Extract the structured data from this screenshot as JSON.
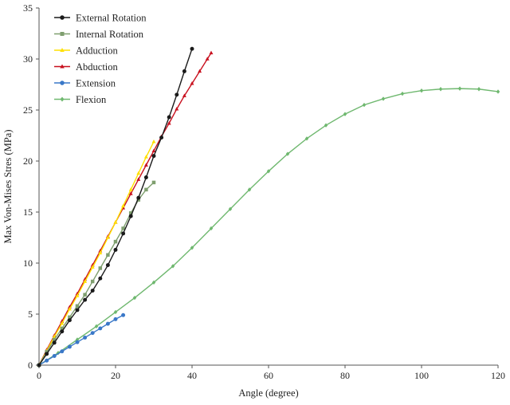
{
  "chart_data": {
    "type": "line",
    "title": "",
    "xlabel": "Angle (degree)",
    "ylabel": "Max Von-Mises Stres (MPa)",
    "xlim": [
      0,
      120
    ],
    "ylim": [
      0,
      35
    ],
    "xticks": [
      "0",
      "20",
      "40",
      "60",
      "80",
      "100",
      "120"
    ],
    "yticks": [
      "0",
      "5",
      "10",
      "15",
      "20",
      "25",
      "30",
      "35"
    ],
    "grid": false,
    "legend_position": "top-left",
    "series": [
      {
        "name": "External Rotation",
        "color": "#1a1a1a",
        "marker": "circle",
        "x": [
          0,
          2,
          4,
          6,
          8,
          10,
          12,
          14,
          16,
          18,
          20,
          22,
          24,
          26,
          28,
          30,
          32,
          34,
          36,
          38,
          40
        ],
        "y": [
          0,
          1.1,
          2.2,
          3.3,
          4.4,
          5.4,
          6.4,
          7.3,
          8.5,
          9.8,
          11.3,
          12.9,
          14.6,
          16.4,
          18.4,
          20.5,
          22.3,
          24.3,
          26.5,
          28.8,
          31
        ]
      },
      {
        "name": "Internal Rotation",
        "color": "#7f9f6f",
        "marker": "square",
        "x": [
          0,
          2,
          4,
          6,
          8,
          10,
          12,
          14,
          16,
          18,
          20,
          22,
          24,
          26,
          28,
          30
        ],
        "y": [
          0,
          1.3,
          2.5,
          3.6,
          4.7,
          5.8,
          6.9,
          8.2,
          9.5,
          10.8,
          12.1,
          13.4,
          14.9,
          16.2,
          17.2,
          17.9
        ]
      },
      {
        "name": "Adduction",
        "color": "#ffe000",
        "marker": "triangle",
        "x": [
          0,
          2,
          4,
          6,
          8,
          10,
          12,
          14,
          16,
          18,
          20,
          22,
          24,
          26,
          28,
          30
        ],
        "y": [
          0,
          1.4,
          2.8,
          4.1,
          5.5,
          6.8,
          8.2,
          9.6,
          11,
          12.5,
          14,
          15.6,
          17.2,
          18.8,
          20.4,
          21.9
        ]
      },
      {
        "name": "Abduction",
        "color": "#c8101e",
        "marker": "triangle",
        "x": [
          0,
          2,
          4,
          6,
          8,
          10,
          12,
          14,
          16,
          18,
          20,
          22,
          24,
          26,
          28,
          30,
          32,
          34,
          36,
          38,
          40,
          42,
          44,
          45
        ],
        "y": [
          0,
          1.5,
          2.9,
          4.3,
          5.7,
          7,
          8.4,
          9.8,
          11.2,
          12.6,
          14,
          15.4,
          16.8,
          18.2,
          19.6,
          21,
          22.4,
          23.7,
          25.1,
          26.4,
          27.6,
          28.8,
          30,
          30.6
        ]
      },
      {
        "name": "Extension",
        "color": "#3a78c8",
        "marker": "circle",
        "x": [
          0,
          2,
          4,
          6,
          8,
          10,
          12,
          14,
          16,
          18,
          20,
          22
        ],
        "y": [
          0,
          0.45,
          0.9,
          1.35,
          1.8,
          2.25,
          2.7,
          3.15,
          3.6,
          4.05,
          4.5,
          4.9
        ]
      },
      {
        "name": "Flexion",
        "color": "#6fb86f",
        "marker": "diamond",
        "x": [
          0,
          5,
          10,
          15,
          20,
          25,
          30,
          35,
          40,
          45,
          50,
          55,
          60,
          65,
          70,
          75,
          80,
          85,
          90,
          95,
          100,
          105,
          110,
          115,
          120
        ],
        "y": [
          0,
          1.2,
          2.5,
          3.8,
          5.2,
          6.6,
          8.1,
          9.7,
          11.5,
          13.4,
          15.3,
          17.2,
          19,
          20.7,
          22.2,
          23.5,
          24.6,
          25.5,
          26.1,
          26.6,
          26.9,
          27.05,
          27.1,
          27.05,
          26.8
        ]
      }
    ]
  }
}
